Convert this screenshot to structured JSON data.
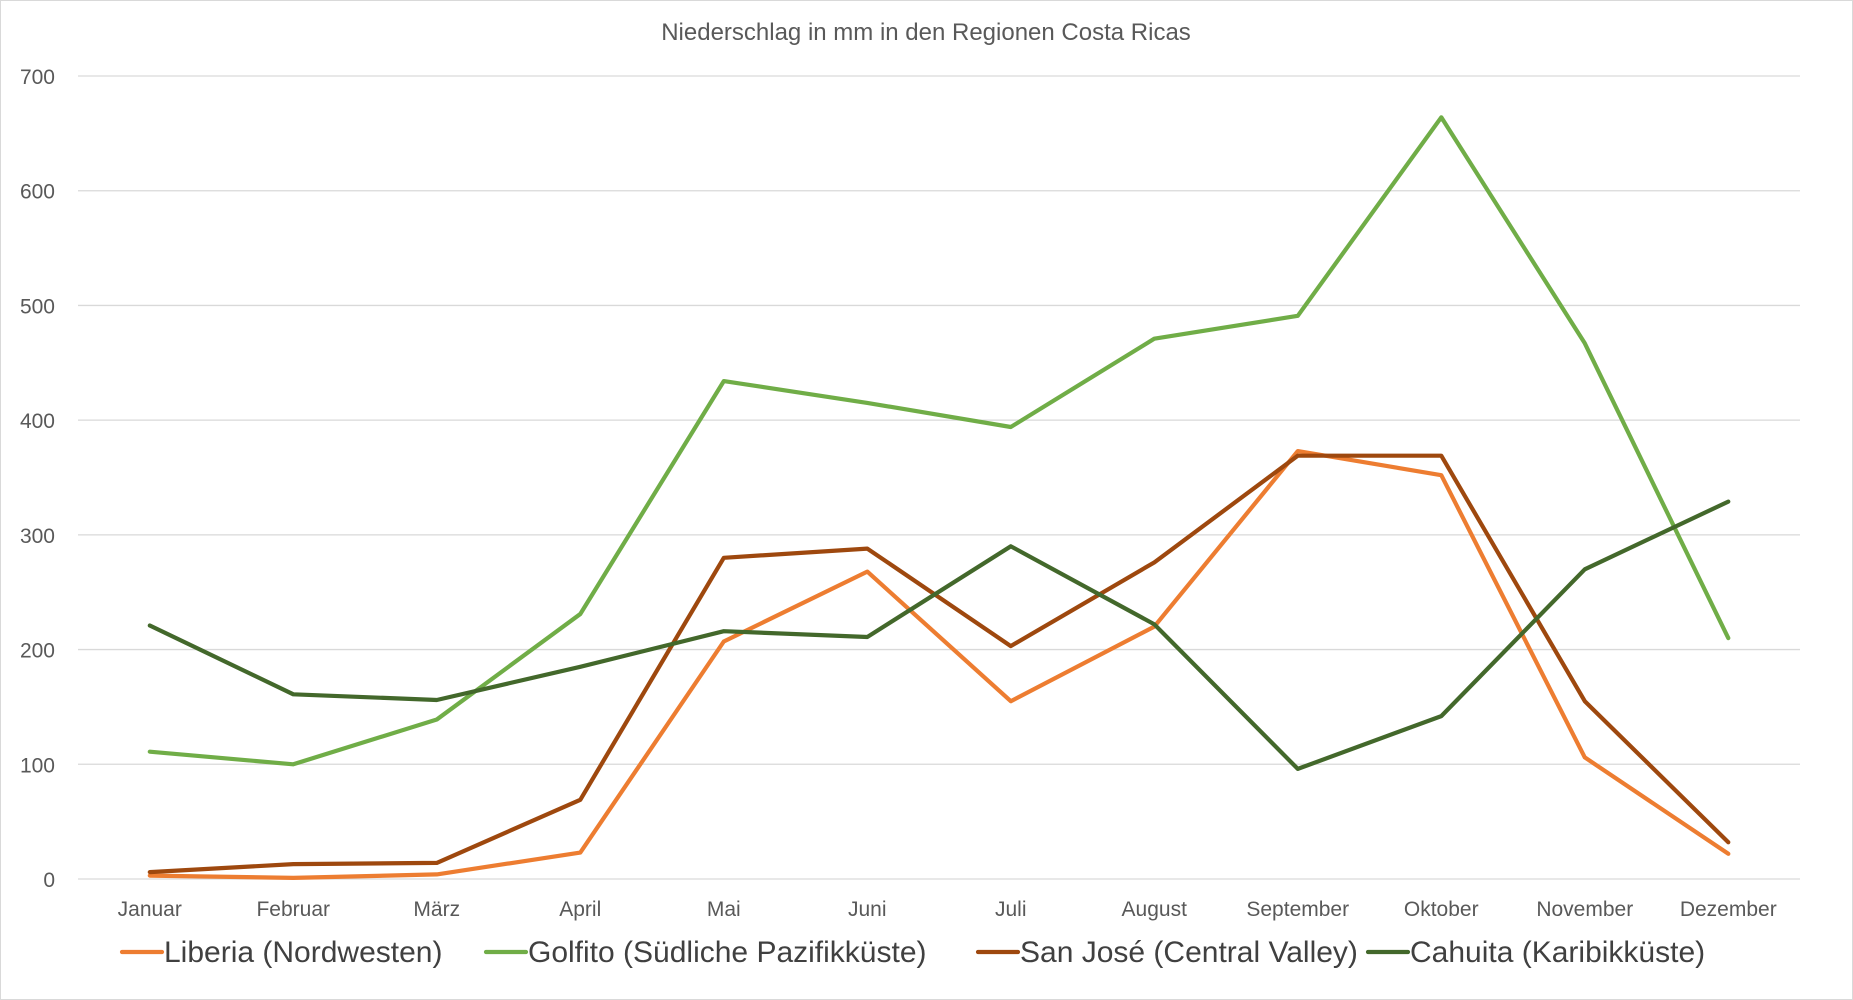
{
  "chart_data": {
    "type": "line",
    "title": "Niederschlag in mm in den Regionen Costa Ricas",
    "xlabel": "",
    "ylabel": "",
    "ylim": [
      0,
      700
    ],
    "yticks": [
      0,
      100,
      200,
      300,
      400,
      500,
      600,
      700
    ],
    "grid": true,
    "legend_position": "bottom",
    "categories": [
      "Januar",
      "Februar",
      "März",
      "April",
      "Mai",
      "Juni",
      "Juli",
      "August",
      "September",
      "Oktober",
      "November",
      "Dezember"
    ],
    "series": [
      {
        "name": "Liberia (Nordwesten)",
        "color": "#ED7D31",
        "values": [
          3,
          1,
          4,
          23,
          207,
          268,
          155,
          220,
          373,
          352,
          106,
          22
        ]
      },
      {
        "name": "Golfito (Südliche Pazifikküste)",
        "color": "#70AD47",
        "values": [
          111,
          100,
          139,
          231,
          434,
          415,
          394,
          471,
          491,
          664,
          467,
          210
        ]
      },
      {
        "name": "San José (Central Valley)",
        "color": "#9E480E",
        "values": [
          6,
          13,
          14,
          69,
          280,
          288,
          203,
          276,
          369,
          369,
          155,
          32
        ]
      },
      {
        "name": "Cahuita (Karibikküste)",
        "color": "#43682B",
        "values": [
          221,
          161,
          156,
          185,
          216,
          211,
          290,
          222,
          96,
          142,
          270,
          329
        ]
      }
    ]
  }
}
